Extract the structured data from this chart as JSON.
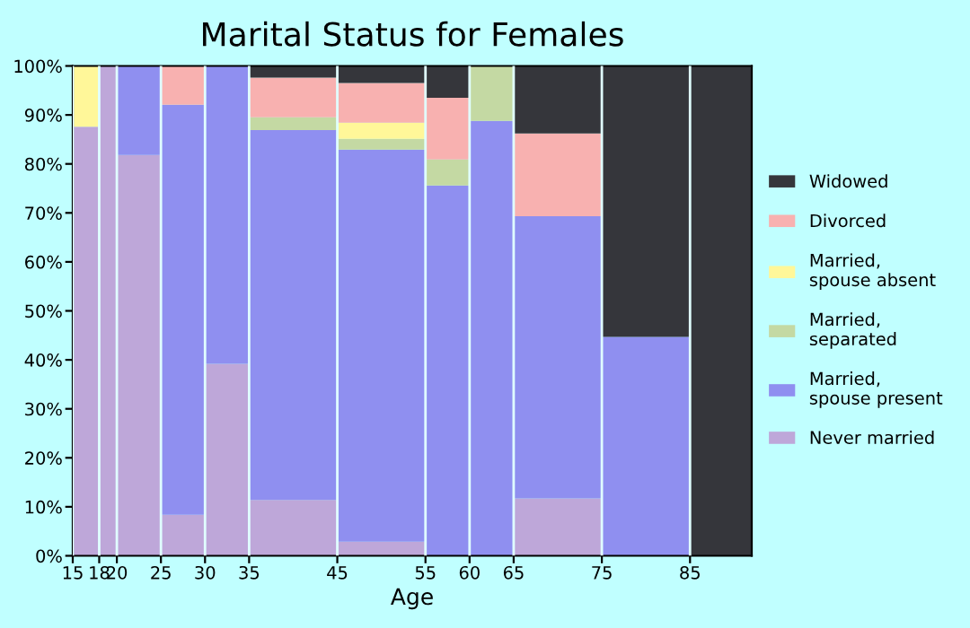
{
  "chart_data": {
    "type": "bar",
    "stacked": true,
    "title": "Marital Status for Females",
    "xlabel": "Age",
    "x": [
      16.5,
      19,
      22.5,
      27.5,
      32.5,
      40,
      50,
      57.5,
      62.5,
      70,
      80,
      88.5
    ],
    "xlim": [
      15,
      92
    ],
    "xticks": [
      15,
      18,
      20,
      25,
      30,
      35,
      45,
      55,
      60,
      65,
      75,
      85
    ],
    "ylim": [
      0,
      100
    ],
    "yticks": [
      {
        "value": 0,
        "label": "0%"
      },
      {
        "value": 10,
        "label": "10%"
      },
      {
        "value": 20,
        "label": "20%"
      },
      {
        "value": 30,
        "label": "30%"
      },
      {
        "value": 40,
        "label": "40%"
      },
      {
        "value": 50,
        "label": "50%"
      },
      {
        "value": 60,
        "label": "60%"
      },
      {
        "value": 70,
        "label": "70%"
      },
      {
        "value": 80,
        "label": "80%"
      },
      {
        "value": 90,
        "label": "90%"
      },
      {
        "value": 100,
        "label": "100%"
      }
    ],
    "grid": "x",
    "legend": "right",
    "series": [
      {
        "name": "Never married",
        "color": "#bea7d9",
        "values": [
          87.6,
          100,
          81.8,
          8.4,
          39.2,
          11.4,
          2.9,
          0,
          0,
          11.7,
          0,
          0
        ]
      },
      {
        "name": "Married,\nspouse present",
        "color": "#8f8ff0",
        "values": [
          0,
          0,
          18.2,
          83.7,
          60.8,
          75.5,
          80,
          75.6,
          88.8,
          57.6,
          44.7,
          0
        ]
      },
      {
        "name": "Married,\nseparated",
        "color": "#c4d9a3",
        "values": [
          0,
          0,
          0,
          0,
          0,
          2.6,
          2.2,
          5.3,
          11.2,
          0,
          0,
          0
        ]
      },
      {
        "name": "Married,\nspouse absent",
        "color": "#fff799",
        "values": [
          12.4,
          0,
          0,
          0,
          0,
          0,
          3.3,
          0,
          0,
          0,
          0,
          0
        ]
      },
      {
        "name": "Divorced",
        "color": "#f8b1b0",
        "values": [
          0,
          0,
          0,
          7.9,
          0,
          8.1,
          8.1,
          12.6,
          0,
          16.9,
          0,
          0
        ]
      },
      {
        "name": "Widowed",
        "color": "#35363b",
        "values": [
          0,
          0,
          0,
          0,
          0,
          2.4,
          3.5,
          6.5,
          0,
          13.8,
          55.3,
          100
        ]
      }
    ]
  }
}
